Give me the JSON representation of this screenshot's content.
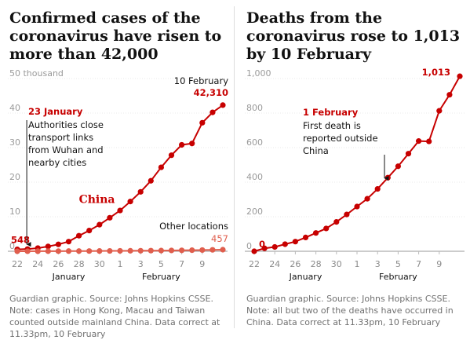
{
  "chart_data": [
    {
      "type": "line",
      "title": "Confirmed cases of the coronavirus have risen to more than 42,000",
      "ylim": [
        0,
        50
      ],
      "y_ticks": [
        "50 thousand",
        "40",
        "30",
        "20",
        "10",
        "0"
      ],
      "y_tick_values": [
        50,
        40,
        30,
        20,
        10,
        0
      ],
      "x_ticks": [
        "22",
        "24",
        "26",
        "28",
        "30",
        "1",
        "3",
        "5",
        "7",
        "9"
      ],
      "months": [
        "January",
        "February"
      ],
      "series": [
        {
          "name": "China",
          "color": "#c70000",
          "values": [
            0.55,
            0.64,
            0.92,
            1.4,
            2.0,
            2.8,
            4.5,
            6.0,
            7.7,
            9.7,
            11.8,
            14.4,
            17.2,
            20.4,
            24.3,
            27.8,
            30.8,
            31.2,
            37.2,
            40.2,
            42.3
          ]
        },
        {
          "name": "Other locations",
          "color": "#e05e4d",
          "values": [
            0.01,
            0.01,
            0.02,
            0.03,
            0.04,
            0.05,
            0.06,
            0.07,
            0.08,
            0.1,
            0.12,
            0.14,
            0.16,
            0.18,
            0.2,
            0.24,
            0.27,
            0.31,
            0.36,
            0.41,
            0.457
          ]
        }
      ],
      "labels": {
        "china": "China",
        "other": "Other locations",
        "other_value": "457",
        "start_value": "548",
        "end_date": "10 February",
        "end_value": "42,310"
      },
      "annotation": {
        "date": "23 January",
        "lines": [
          "Authorities close",
          "transport links",
          "from Wuhan and",
          "nearby cities"
        ]
      },
      "note": "Guardian graphic. Source: Johns Hopkins CSSE. Note: cases in Hong Kong, Macau and Taiwan counted outside mainland China. Data correct at 11.33pm, 10 February"
    },
    {
      "type": "line",
      "title": "Deaths from the coronavirus rose to 1,013 by 10 February",
      "ylim": [
        0,
        1000
      ],
      "y_ticks": [
        "1,000",
        "800",
        "600",
        "400",
        "200",
        "0"
      ],
      "y_tick_values": [
        1000,
        800,
        600,
        400,
        200,
        0
      ],
      "x_ticks": [
        "22",
        "24",
        "26",
        "28",
        "30",
        "1",
        "3",
        "5",
        "7",
        "9"
      ],
      "months": [
        "January",
        "February"
      ],
      "series": [
        {
          "name": "Deaths",
          "color": "#c70000",
          "values": [
            0,
            17,
            25,
            41,
            56,
            80,
            106,
            132,
            170,
            213,
            259,
            304,
            361,
            426,
            492,
            565,
            638,
            636,
            813,
            906,
            1013
          ]
        }
      ],
      "labels": {
        "start_value": "0",
        "end_value": "1,013"
      },
      "annotation": {
        "date": "1 February",
        "lines": [
          "First death is",
          "reported outside",
          "China"
        ]
      },
      "note": "Guardian graphic. Source: Johns Hopkins CSSE. Note: all but two of the deaths have occurred in China. Data correct at 11.33pm, 10 February"
    }
  ]
}
